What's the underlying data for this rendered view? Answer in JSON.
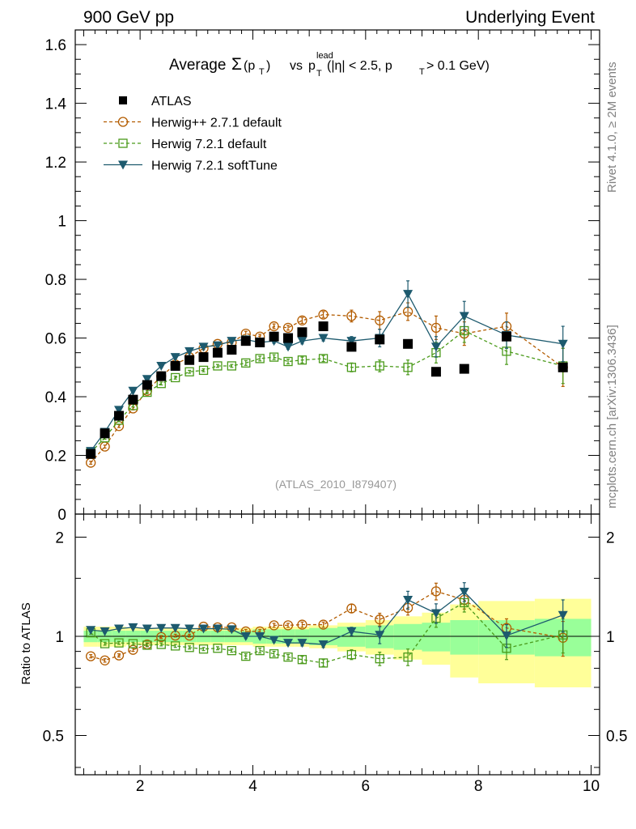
{
  "header": {
    "left": "900 GeV pp",
    "right": "Underlying Event"
  },
  "side_labels": {
    "rivet": "Rivet 4.1.0, ≥ 2M events",
    "mcplots": "mcplots.cern.ch [arXiv:1306.3436]"
  },
  "title": {
    "prefix": "Average",
    "sigma": "Σ",
    "pt": "(p",
    "pt_sub": "T",
    "pt_close": ")",
    "vs": "vs",
    "p": "p",
    "p_sup": "lead",
    "p_sub": "T",
    "cuts_a": "(|η| < 2.5, p",
    "cuts_sub": "T",
    "cuts_b": "> 0.1 GeV)"
  },
  "analysis_id": "(ATLAS_2010_I879407)",
  "ratio_ylabel": "Ratio to ATLAS",
  "colors": {
    "atlas": "#000000",
    "herwigpp": "#b35c00",
    "herwig721": "#4a9a1a",
    "softtune": "#1d5a6e",
    "band_inner": "#99ff99",
    "band_outer": "#ffff99"
  },
  "chart_data": {
    "type": "scatter",
    "x_range": [
      0.85,
      10.15
    ],
    "main_ylim": [
      0,
      1.65
    ],
    "ratio_ylim": [
      0.38,
      2.35
    ],
    "x_ticks": [
      "2",
      "4",
      "6",
      "8",
      "10"
    ],
    "main_y_ticks": [
      "0",
      "0.2",
      "0.4",
      "0.6",
      "0.8",
      "1",
      "1.2",
      "1.4",
      "1.6"
    ],
    "ratio_y_ticks": [
      "0.5",
      "1",
      "2"
    ],
    "x": [
      1.125,
      1.375,
      1.625,
      1.875,
      2.125,
      2.375,
      2.625,
      2.875,
      3.125,
      3.375,
      3.625,
      3.875,
      4.125,
      4.375,
      4.625,
      4.875,
      5.25,
      5.75,
      6.25,
      6.75,
      7.25,
      7.75,
      8.5,
      9.5
    ],
    "bin_edges": [
      1.0,
      1.25,
      1.5,
      1.75,
      2.0,
      2.25,
      2.5,
      2.75,
      3.0,
      3.25,
      3.5,
      3.75,
      4.0,
      4.25,
      4.5,
      4.75,
      5.0,
      5.5,
      6.0,
      6.5,
      7.0,
      7.5,
      8.0,
      9.0,
      10.0
    ],
    "band_inner": [
      0.04,
      0.04,
      0.04,
      0.04,
      0.04,
      0.04,
      0.04,
      0.04,
      0.04,
      0.04,
      0.04,
      0.04,
      0.05,
      0.05,
      0.05,
      0.05,
      0.06,
      0.07,
      0.08,
      0.09,
      0.1,
      0.12,
      0.12,
      0.13
    ],
    "band_outer": [
      0.07,
      0.07,
      0.07,
      0.06,
      0.06,
      0.06,
      0.06,
      0.06,
      0.06,
      0.06,
      0.06,
      0.06,
      0.07,
      0.07,
      0.07,
      0.07,
      0.08,
      0.1,
      0.12,
      0.15,
      0.18,
      0.25,
      0.28,
      0.3
    ],
    "series": [
      {
        "name": "ATLAS",
        "key": "atlas",
        "marker": "filled-square",
        "line": "none",
        "values": [
          0.205,
          0.275,
          0.335,
          0.39,
          0.44,
          0.47,
          0.505,
          0.525,
          0.535,
          0.55,
          0.56,
          0.59,
          0.585,
          0.605,
          0.6,
          0.62,
          0.64,
          0.57,
          0.595,
          0.58,
          0.485,
          0.495,
          0.605,
          0.5
        ],
        "errors": [
          0.0,
          0.0,
          0.0,
          0.0,
          0.0,
          0.0,
          0.0,
          0.0,
          0.0,
          0.0,
          0.0,
          0.0,
          0.0,
          0.0,
          0.0,
          0.0,
          0.0,
          0.0,
          0.0,
          0.0,
          0.0,
          0.0,
          0.0,
          0.0
        ],
        "ratio": [
          1.0,
          1.0,
          1.0,
          1.0,
          1.0,
          1.0,
          1.0,
          1.0,
          1.0,
          1.0,
          1.0,
          1.0,
          1.0,
          1.0,
          1.0,
          1.0,
          1.0,
          1.0,
          1.0,
          1.0,
          1.0,
          1.0,
          1.0,
          1.0
        ],
        "ratio_errors": [
          0,
          0,
          0,
          0,
          0,
          0,
          0,
          0,
          0,
          0,
          0,
          0,
          0,
          0,
          0,
          0,
          0,
          0,
          0,
          0,
          0,
          0,
          0,
          0
        ]
      },
      {
        "name": "Herwig++ 2.7.1 default",
        "key": "herwigpp",
        "marker": "open-circle",
        "line": "dashed",
        "values": [
          0.175,
          0.23,
          0.3,
          0.36,
          0.42,
          0.47,
          0.51,
          0.535,
          0.565,
          0.58,
          0.585,
          0.615,
          0.605,
          0.64,
          0.635,
          0.66,
          0.68,
          0.675,
          0.66,
          0.69,
          0.635,
          0.615,
          0.64,
          0.5
        ],
        "errors": [
          0.005,
          0.005,
          0.005,
          0.005,
          0.005,
          0.005,
          0.005,
          0.005,
          0.005,
          0.005,
          0.005,
          0.008,
          0.008,
          0.008,
          0.008,
          0.01,
          0.01,
          0.02,
          0.03,
          0.03,
          0.04,
          0.04,
          0.045,
          0.065
        ],
        "ratio": [
          0.87,
          0.845,
          0.875,
          0.91,
          0.945,
          0.995,
          1.005,
          1.005,
          1.07,
          1.065,
          1.065,
          1.035,
          1.035,
          1.08,
          1.08,
          1.085,
          1.085,
          1.215,
          1.125,
          1.22,
          1.37,
          1.29,
          1.06,
          0.99
        ],
        "ratio_errors": [
          0.01,
          0.01,
          0.01,
          0.01,
          0.01,
          0.01,
          0.01,
          0.01,
          0.01,
          0.01,
          0.01,
          0.015,
          0.015,
          0.015,
          0.015,
          0.02,
          0.02,
          0.035,
          0.05,
          0.06,
          0.08,
          0.08,
          0.07,
          0.12
        ]
      },
      {
        "name": "Herwig 7.2.1 default",
        "key": "herwig721",
        "marker": "open-square",
        "line": "dashed",
        "values": [
          0.21,
          0.26,
          0.32,
          0.37,
          0.415,
          0.445,
          0.465,
          0.485,
          0.49,
          0.505,
          0.505,
          0.515,
          0.53,
          0.535,
          0.52,
          0.525,
          0.53,
          0.5,
          0.505,
          0.5,
          0.55,
          0.625,
          0.555,
          0.505
        ],
        "errors": [
          0.005,
          0.005,
          0.005,
          0.005,
          0.005,
          0.005,
          0.005,
          0.005,
          0.005,
          0.005,
          0.005,
          0.008,
          0.008,
          0.008,
          0.008,
          0.01,
          0.01,
          0.015,
          0.02,
          0.025,
          0.035,
          0.04,
          0.045,
          0.06
        ],
        "ratio": [
          1.025,
          0.95,
          0.955,
          0.95,
          0.94,
          0.945,
          0.935,
          0.925,
          0.915,
          0.92,
          0.905,
          0.87,
          0.905,
          0.885,
          0.865,
          0.85,
          0.83,
          0.88,
          0.855,
          0.865,
          1.135,
          1.265,
          0.92,
          1.01
        ],
        "ratio_errors": [
          0.01,
          0.01,
          0.01,
          0.01,
          0.01,
          0.01,
          0.01,
          0.01,
          0.01,
          0.01,
          0.01,
          0.015,
          0.015,
          0.015,
          0.015,
          0.02,
          0.02,
          0.03,
          0.04,
          0.05,
          0.07,
          0.08,
          0.07,
          0.12
        ]
      },
      {
        "name": "Herwig 7.2.1 softTune",
        "key": "softtune",
        "marker": "filled-triangle-down",
        "line": "solid",
        "values": [
          0.215,
          0.28,
          0.355,
          0.42,
          0.46,
          0.505,
          0.535,
          0.555,
          0.57,
          0.575,
          0.59,
          0.595,
          0.585,
          0.59,
          0.57,
          0.59,
          0.6,
          0.59,
          0.6,
          0.75,
          0.57,
          0.675,
          0.61,
          0.58
        ],
        "errors": [
          0.005,
          0.005,
          0.005,
          0.005,
          0.005,
          0.005,
          0.005,
          0.005,
          0.005,
          0.005,
          0.005,
          0.008,
          0.008,
          0.008,
          0.008,
          0.01,
          0.01,
          0.015,
          0.03,
          0.045,
          0.035,
          0.05,
          0.045,
          0.06
        ],
        "ratio": [
          1.045,
          1.035,
          1.055,
          1.065,
          1.055,
          1.06,
          1.06,
          1.055,
          1.055,
          1.055,
          1.05,
          1.0,
          1.0,
          0.975,
          0.955,
          0.955,
          0.945,
          1.035,
          1.01,
          1.29,
          1.175,
          1.365,
          1.005,
          1.16
        ],
        "ratio_errors": [
          0.01,
          0.01,
          0.01,
          0.01,
          0.01,
          0.01,
          0.01,
          0.01,
          0.01,
          0.01,
          0.01,
          0.015,
          0.015,
          0.015,
          0.015,
          0.02,
          0.02,
          0.03,
          0.06,
          0.08,
          0.08,
          0.09,
          0.08,
          0.13
        ]
      }
    ]
  }
}
